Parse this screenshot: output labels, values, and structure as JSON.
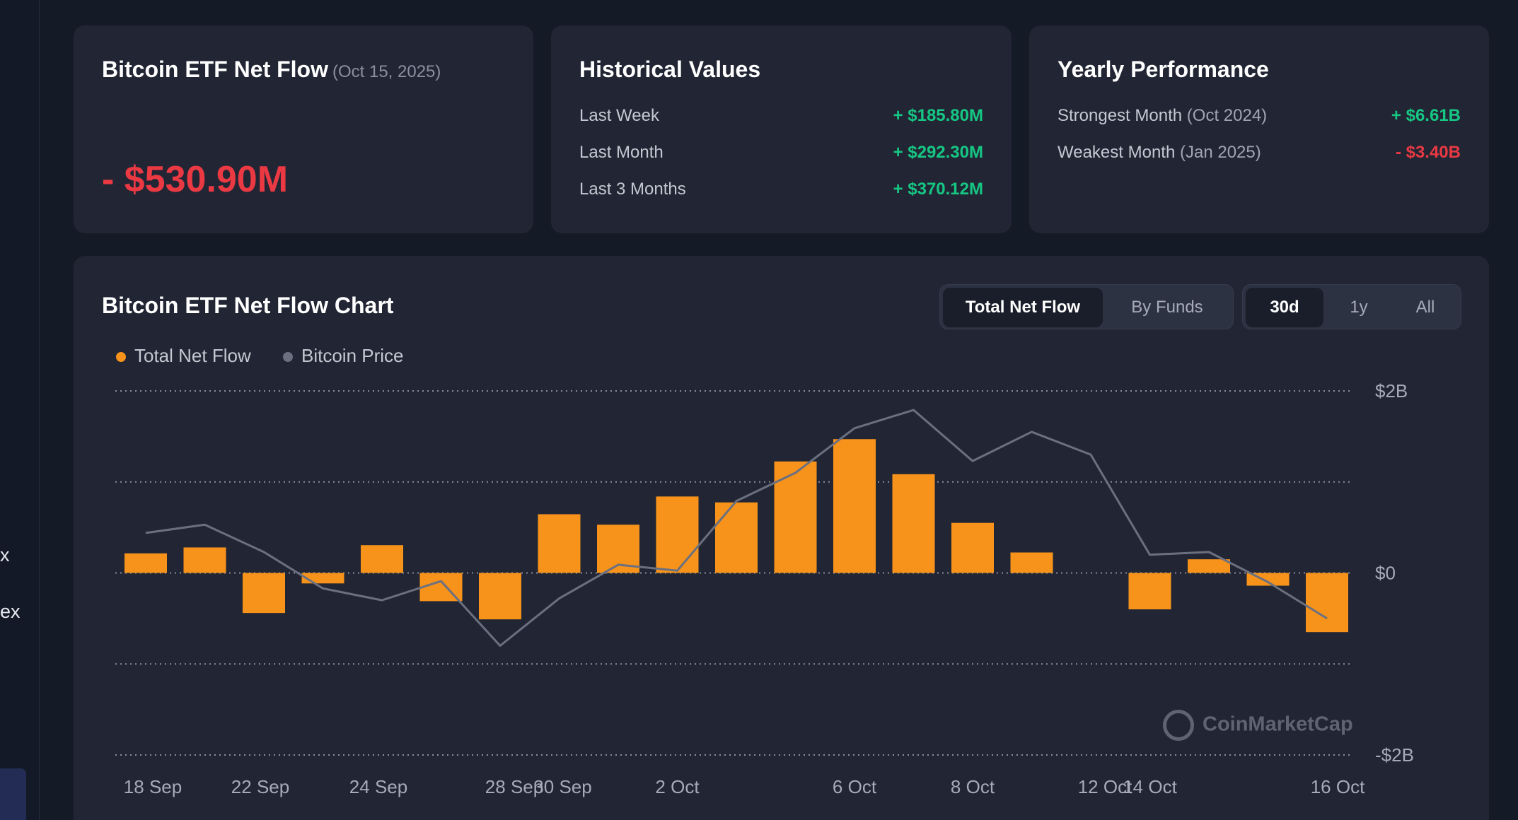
{
  "sidebar": {
    "items": [
      "x",
      "ex"
    ]
  },
  "net_flow_card": {
    "title": "Bitcoin ETF Net Flow",
    "date": "(Oct 15, 2025)",
    "value": "- $530.90M"
  },
  "historical_card": {
    "title": "Historical Values",
    "rows": [
      {
        "label": "Last Week",
        "value": "+ $185.80M"
      },
      {
        "label": "Last Month",
        "value": "+ $292.30M"
      },
      {
        "label": "Last 3 Months",
        "value": "+ $370.12M"
      }
    ]
  },
  "yearly_card": {
    "title": "Yearly Performance",
    "rows": [
      {
        "label": "Strongest Month",
        "period": "(Oct 2024)",
        "value": "+ $6.61B"
      },
      {
        "label": "Weakest Month",
        "period": "(Jan 2025)",
        "value": "- $3.40B"
      }
    ]
  },
  "chart_card": {
    "title": "Bitcoin ETF Net Flow Chart",
    "view_tabs": [
      "Total Net Flow",
      "By Funds"
    ],
    "view_selected": "Total Net Flow",
    "range_tabs": [
      "30d",
      "1y",
      "All"
    ],
    "range_selected": "30d",
    "legend": [
      "Total Net Flow",
      "Bitcoin Price"
    ],
    "watermark": "CoinMarketCap"
  },
  "colors": {
    "bar": "#f7931a",
    "price_line": "#6b7080",
    "positive": "#16c784",
    "negative": "#ea3943"
  },
  "chart_data": {
    "type": "bar",
    "y_tick_labels": [
      "$2B",
      "$0",
      "-$2B"
    ],
    "ylim": [
      -2000,
      2000
    ],
    "y_unit": "$M",
    "x_tick_labels": [
      "18 Sep",
      "22 Sep",
      "24 Sep",
      "28 Sep",
      "30 Sep",
      "2 Oct",
      "6 Oct",
      "8 Oct",
      "12 Oct",
      "14 Oct",
      "16 Oct"
    ],
    "series": [
      {
        "name": "Total Net Flow",
        "values": [
          215,
          280,
          -440,
          -115,
          305,
          -310,
          -510,
          645,
          530,
          840,
          775,
          1225,
          1470,
          1085,
          550,
          225,
          null,
          -400,
          150,
          -140,
          -650
        ]
      },
      {
        "name": "Bitcoin Price",
        "values": [
          440,
          530,
          230,
          -170,
          -300,
          -90,
          -800,
          -280,
          90,
          25,
          790,
          1100,
          1590,
          1790,
          1230,
          1550,
          1300,
          200,
          230,
          -100,
          -500
        ]
      }
    ]
  }
}
